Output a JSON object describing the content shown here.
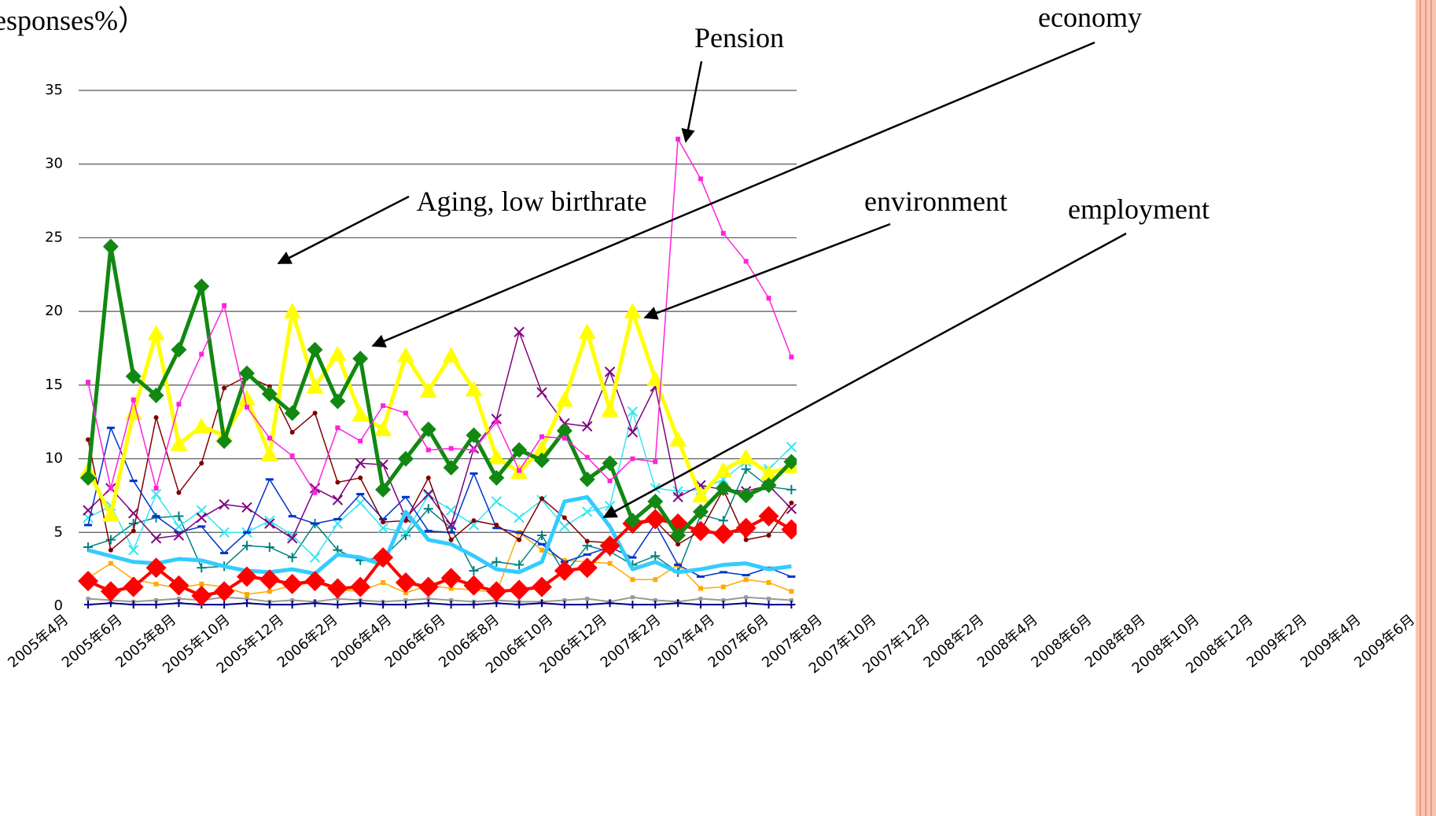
{
  "chart_data": {
    "type": "line",
    "y_label": "esponses%）",
    "annotations": [
      "Pension",
      "economy",
      "Aging, low birthrate",
      "environment",
      "employment"
    ],
    "categories": [
      "2005年4月",
      null,
      "2005年6月",
      null,
      "2005年8月",
      null,
      "2005年10月",
      null,
      "2005年12月",
      null,
      "2006年2月",
      null,
      "2006年4月",
      null,
      "2006年6月",
      null,
      "2006年8月",
      null,
      "2006年10月",
      null,
      "2006年12月",
      null,
      "2007年2月",
      null,
      "2007年4月",
      null,
      "2007年6月",
      null,
      "2007年8月",
      null,
      "2007年10月",
      null,
      "2007年12月",
      null,
      "2008年2月",
      null,
      "2008年4月",
      null,
      "2008年6月",
      null,
      "2008年8月",
      null,
      "2008年10月",
      null,
      "2008年12月",
      null,
      "2009年2月",
      null,
      "2009年4月",
      null,
      "2009年6月"
    ],
    "ylim": [
      0,
      35
    ],
    "yticks": [
      0,
      5,
      10,
      15,
      20,
      25,
      30,
      35
    ],
    "grid": true,
    "series": [
      {
        "color": "#999999",
        "marker": "square",
        "width": 2,
        "size": 5,
        "values": [
          0.5,
          0.4,
          0.3,
          0.4,
          0.5,
          0.4,
          0.6,
          0.5,
          0.3,
          0.4,
          0.3,
          0.5,
          0.4,
          0.3,
          0.4,
          0.5,
          0.4,
          0.3,
          0.4,
          0.3,
          0.3,
          0.4,
          0.5,
          0.3,
          0.6,
          0.4,
          0.3,
          0.5,
          0.4,
          0.6,
          0.5,
          0.4,
          null,
          null,
          null,
          null,
          null,
          null,
          null,
          null,
          null,
          null,
          null,
          null,
          null,
          null,
          null,
          null,
          null,
          null,
          null
        ]
      },
      {
        "color": "#000080",
        "marker": "plus",
        "width": 2,
        "size": 5,
        "values": [
          0.1,
          0.2,
          0.1,
          0.1,
          0.2,
          0.1,
          0.1,
          0.2,
          0.1,
          0.1,
          0.2,
          0.1,
          0.2,
          0.1,
          0.1,
          0.2,
          0.1,
          0.1,
          0.2,
          0.1,
          0.2,
          0.1,
          0.1,
          0.2,
          0.1,
          0.1,
          0.2,
          0.1,
          0.1,
          0.2,
          0.1,
          0.1,
          null,
          null,
          null,
          null,
          null,
          null,
          null,
          null,
          null,
          null,
          null,
          null,
          null,
          null,
          null,
          null,
          null,
          null,
          null
        ]
      },
      {
        "color": "#ffaa00",
        "marker": "square",
        "width": 1.5,
        "size": 6,
        "values": [
          1.9,
          2.9,
          1.8,
          1.5,
          1.2,
          1.5,
          1.3,
          0.8,
          1.0,
          1.4,
          1.6,
          1.1,
          1.0,
          1.6,
          0.9,
          1.4,
          1.2,
          1.1,
          0.9,
          5.0,
          3.8,
          3.1,
          3.0,
          2.9,
          1.8,
          1.8,
          2.8,
          1.2,
          1.3,
          1.8,
          1.6,
          1.0,
          null,
          null,
          null,
          null,
          null,
          null,
          null,
          null,
          null,
          null,
          null,
          null,
          null,
          null,
          null,
          null,
          null,
          null,
          null
        ]
      },
      {
        "color": "#008080",
        "marker": "plus",
        "width": 1.5,
        "size": 6,
        "values": [
          4.0,
          4.5,
          5.6,
          6.0,
          6.1,
          2.6,
          2.7,
          4.1,
          4.0,
          3.3,
          5.6,
          3.8,
          3.1,
          3.3,
          4.8,
          6.6,
          5.3,
          2.4,
          3.0,
          2.8,
          4.8,
          2.2,
          4.1,
          3.7,
          2.8,
          3.4,
          2.3,
          6.2,
          5.8,
          9.3,
          8.1,
          7.9,
          null,
          null,
          null,
          null,
          null,
          null,
          null,
          null,
          null,
          null,
          null,
          null,
          null,
          null,
          null,
          null,
          null,
          null,
          null
        ]
      },
      {
        "color": "#33e6f0",
        "marker": "x",
        "width": 1.5,
        "size": 6,
        "values": [
          6.0,
          6.8,
          3.8,
          7.6,
          5.4,
          6.5,
          5.0,
          5.0,
          5.8,
          4.8,
          3.3,
          5.6,
          7.0,
          5.3,
          5.0,
          7.5,
          6.5,
          5.5,
          7.1,
          6.0,
          7.2,
          5.4,
          6.4,
          6.8,
          13.2,
          8.0,
          7.8,
          7.9,
          8.6,
          9.8,
          9.3,
          10.8,
          null,
          null,
          null,
          null,
          null,
          null,
          null,
          null,
          null,
          null,
          null,
          null,
          null,
          null,
          null,
          null,
          null,
          null,
          null
        ]
      },
      {
        "color": "#0033cc",
        "marker": "dash",
        "width": 1.5,
        "size": 5,
        "values": [
          5.5,
          12.1,
          8.5,
          6.1,
          5.0,
          5.4,
          3.6,
          5.0,
          8.6,
          6.1,
          5.6,
          5.9,
          7.6,
          5.9,
          7.4,
          5.1,
          5.0,
          9.0,
          5.3,
          5.0,
          4.2,
          3.0,
          3.5,
          4.0,
          3.3,
          5.6,
          2.8,
          2.0,
          2.3,
          2.1,
          2.6,
          2.0,
          null,
          null,
          null,
          null,
          null,
          null,
          null,
          null,
          null,
          null,
          null,
          null,
          null,
          null,
          null,
          null,
          null,
          null,
          null
        ]
      },
      {
        "color": "#800080",
        "marker": "x",
        "width": 1.5,
        "size": 6,
        "values": [
          6.5,
          8.0,
          6.3,
          4.6,
          4.8,
          6.0,
          6.9,
          6.7,
          5.6,
          4.6,
          8.0,
          7.2,
          9.7,
          9.6,
          6.0,
          7.6,
          5.5,
          10.7,
          12.7,
          18.6,
          14.5,
          12.4,
          12.2,
          15.9,
          11.8,
          14.9,
          7.4,
          8.2,
          7.9,
          7.8,
          8.2,
          6.6,
          null,
          null,
          null,
          null,
          null,
          null,
          null,
          null,
          null,
          null,
          null,
          null,
          null,
          null,
          null,
          null,
          null,
          null,
          null
        ]
      },
      {
        "color": "#800000",
        "marker": "circle",
        "width": 1.5,
        "size": 6,
        "values": [
          11.3,
          3.8,
          5.1,
          12.8,
          7.7,
          9.7,
          14.8,
          15.6,
          14.9,
          11.8,
          13.1,
          8.4,
          8.7,
          5.7,
          5.8,
          8.7,
          4.5,
          5.8,
          5.5,
          4.5,
          7.3,
          6.0,
          4.4,
          4.3,
          5.5,
          5.8,
          4.2,
          5.1,
          7.9,
          4.5,
          4.8,
          7.0,
          null,
          null,
          null,
          null,
          null,
          null,
          null,
          null,
          null,
          null,
          null,
          null,
          null,
          null,
          null,
          null,
          null,
          null,
          null
        ]
      },
      {
        "color": "#33ccff",
        "marker": "none",
        "width": 5,
        "size": 0,
        "values": [
          3.8,
          3.4,
          3.0,
          2.9,
          3.2,
          3.1,
          2.7,
          2.4,
          2.3,
          2.5,
          2.2,
          3.5,
          3.3,
          2.8,
          6.4,
          4.5,
          4.2,
          3.4,
          2.5,
          2.3,
          3.0,
          7.1,
          7.4,
          5.4,
          2.5,
          3.0,
          2.3,
          2.5,
          2.8,
          2.9,
          2.5,
          2.7,
          null,
          null,
          null,
          null,
          null,
          null,
          null,
          null,
          null,
          null,
          null,
          null,
          null,
          null,
          null,
          null,
          null,
          null,
          null
        ]
      },
      {
        "color": "#ff0000",
        "marker": "diamond",
        "width": 4,
        "size": 13,
        "values": [
          1.7,
          1.0,
          1.3,
          2.6,
          1.4,
          0.7,
          1.0,
          2.0,
          1.8,
          1.5,
          1.7,
          1.2,
          1.3,
          3.3,
          1.6,
          1.3,
          1.9,
          1.4,
          1.0,
          1.1,
          1.3,
          2.4,
          2.6,
          4.1,
          5.6,
          5.9,
          5.6,
          5.1,
          4.9,
          5.3,
          6.1,
          5.2,
          null,
          null,
          null,
          null,
          null,
          null,
          null,
          null,
          null,
          null,
          null,
          null,
          null,
          null,
          null,
          null,
          null,
          null,
          null
        ]
      },
      {
        "color": "#ffff00",
        "marker": "triangle",
        "width": 5,
        "size": 11,
        "values": [
          9.2,
          6.2,
          13.1,
          18.5,
          11.0,
          12.2,
          11.6,
          14.1,
          10.3,
          20.0,
          14.9,
          17.1,
          13.0,
          12.0,
          17.0,
          14.6,
          17.0,
          14.7,
          10.1,
          9.1,
          10.7,
          14.0,
          18.6,
          13.3,
          20.0,
          15.4,
          11.3,
          7.5,
          9.2,
          10.1,
          9.0,
          9.5,
          null,
          null,
          null,
          null,
          null,
          null,
          null,
          null,
          null,
          null,
          null,
          null,
          null,
          null,
          null,
          null,
          null,
          null,
          null
        ]
      },
      {
        "color": "#118811",
        "marker": "diamond",
        "width": 5,
        "size": 10,
        "values": [
          8.7,
          24.4,
          15.6,
          14.3,
          17.4,
          21.7,
          11.2,
          15.8,
          14.4,
          13.1,
          17.4,
          13.9,
          16.8,
          7.9,
          10.0,
          12.0,
          9.4,
          11.6,
          8.7,
          10.6,
          9.9,
          11.9,
          8.6,
          9.7,
          5.8,
          7.1,
          4.8,
          6.4,
          8.0,
          7.5,
          8.2,
          9.8,
          null,
          null,
          null,
          null,
          null,
          null,
          null,
          null,
          null,
          null,
          null,
          null,
          null,
          null,
          null,
          null,
          null,
          null,
          null
        ]
      },
      {
        "color": "#ff22dd",
        "marker": "square",
        "width": 1.5,
        "size": 6,
        "values": [
          15.2,
          8.0,
          14.0,
          8.0,
          13.7,
          17.1,
          20.4,
          13.5,
          11.4,
          10.2,
          7.7,
          12.1,
          11.2,
          13.6,
          13.1,
          10.6,
          10.7,
          10.6,
          12.5,
          9.2,
          11.5,
          11.4,
          10.1,
          8.5,
          10.0,
          9.8,
          31.7,
          29.0,
          25.3,
          23.4,
          20.9,
          16.9,
          null,
          null,
          null,
          null,
          null,
          null,
          null,
          null,
          null,
          null,
          null,
          null,
          null,
          null,
          null,
          null,
          null,
          null,
          null
        ]
      }
    ]
  }
}
